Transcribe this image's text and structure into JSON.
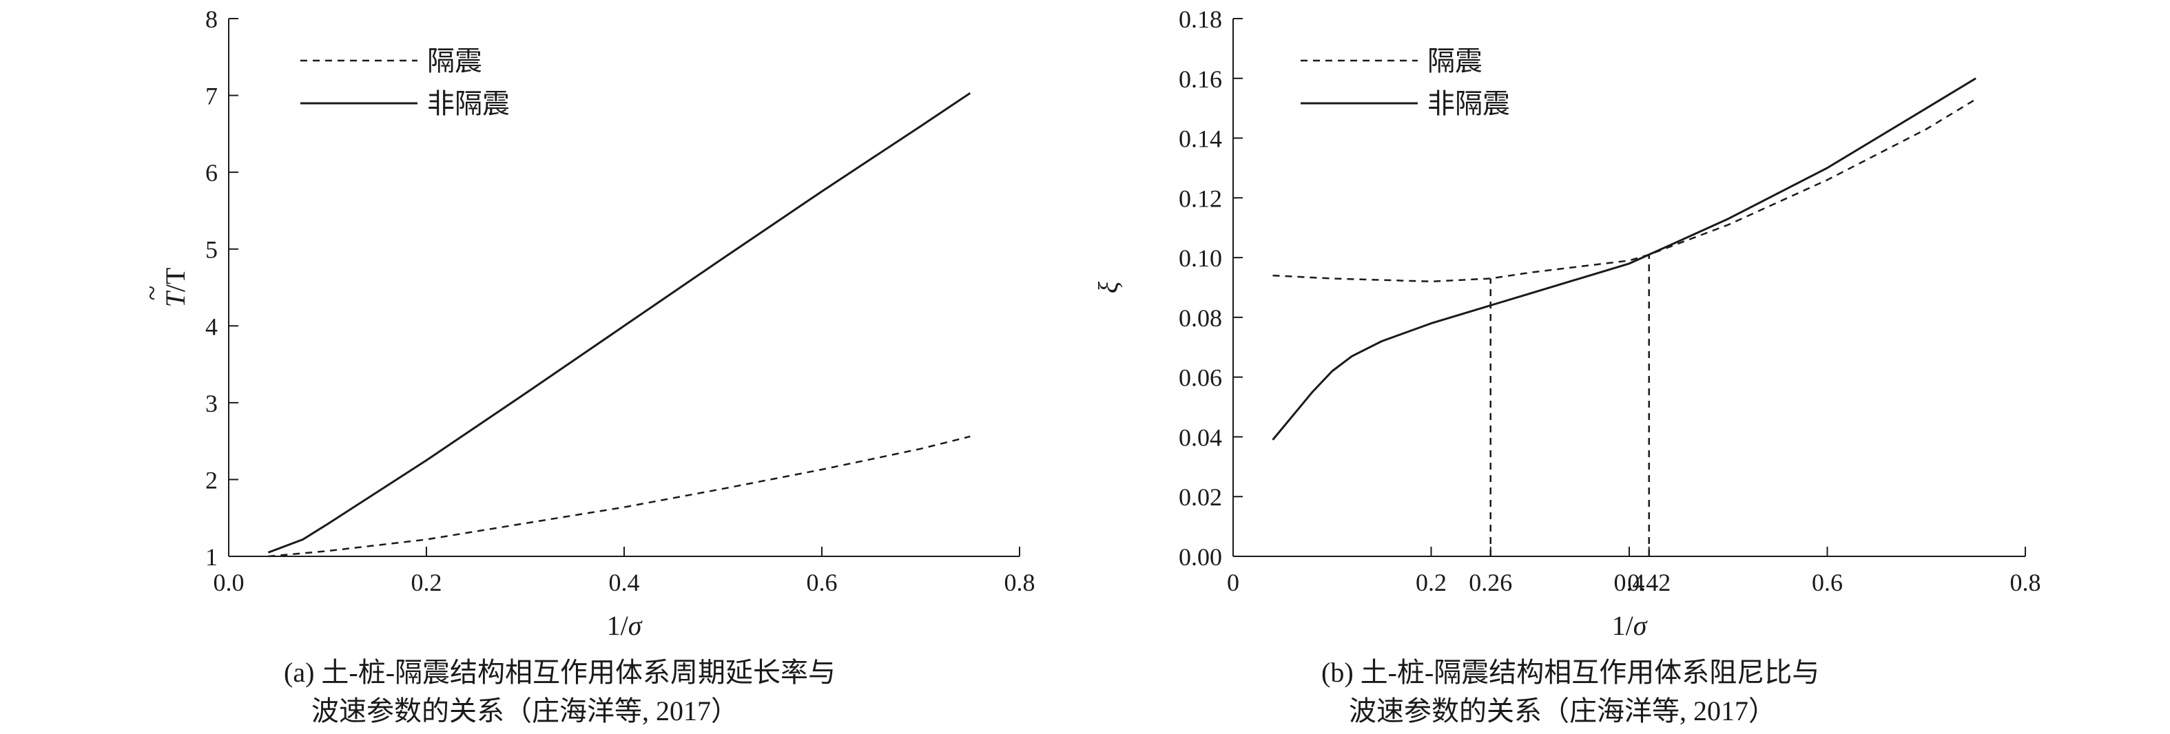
{
  "chart_data": [
    {
      "type": "line",
      "xlabel": "1/σ",
      "ylabel": "T/T",
      "ylabel_mark": "~",
      "xlim": [
        0,
        0.8
      ],
      "ylim": [
        1,
        8
      ],
      "xticks": [
        "0.0",
        "0.2",
        "0.4",
        "0.6",
        "0.8"
      ],
      "yticks": [
        "1",
        "2",
        "3",
        "4",
        "5",
        "6",
        "7",
        "8"
      ],
      "legend_position": "top-left",
      "series": [
        {
          "name": "隔震",
          "style": "dashed",
          "x": [
            0.04,
            0.1,
            0.2,
            0.3,
            0.4,
            0.5,
            0.6,
            0.7,
            0.75
          ],
          "y": [
            1.0,
            1.07,
            1.22,
            1.43,
            1.64,
            1.88,
            2.13,
            2.4,
            2.56
          ]
        },
        {
          "name": "非隔震",
          "style": "solid",
          "x": [
            0.04,
            0.075,
            0.1,
            0.2,
            0.3,
            0.4,
            0.5,
            0.6,
            0.7,
            0.75
          ],
          "y": [
            1.05,
            1.22,
            1.42,
            2.25,
            3.12,
            4.0,
            4.88,
            5.75,
            6.6,
            7.03
          ]
        }
      ],
      "caption_lines": [
        "(a) 土-桩-隔震结构相互作用体系周期延长率与",
        "波速参数的关系（庄海洋等, 2017）"
      ]
    },
    {
      "type": "line",
      "xlabel": "1/σ",
      "ylabel": "ξ",
      "xlim": [
        0,
        0.8
      ],
      "ylim": [
        0,
        0.18
      ],
      "xticks": [
        "0",
        "0.2",
        "0.26",
        "0.4",
        "0.42",
        "0.6",
        "0.8"
      ],
      "xtick_values": [
        0,
        0.2,
        0.26,
        0.4,
        0.42,
        0.6,
        0.8
      ],
      "yticks": [
        "0.00",
        "0.02",
        "0.04",
        "0.06",
        "0.08",
        "0.10",
        "0.12",
        "0.14",
        "0.16",
        "0.18"
      ],
      "legend_position": "top-left",
      "series": [
        {
          "name": "隔震",
          "style": "dashed",
          "x": [
            0.04,
            0.1,
            0.2,
            0.26,
            0.3,
            0.4,
            0.42,
            0.5,
            0.6,
            0.7,
            0.75
          ],
          "y": [
            0.094,
            0.093,
            0.092,
            0.093,
            0.095,
            0.099,
            0.101,
            0.111,
            0.126,
            0.143,
            0.153
          ]
        },
        {
          "name": "非隔震",
          "style": "solid",
          "x": [
            0.04,
            0.06,
            0.08,
            0.1,
            0.12,
            0.15,
            0.2,
            0.26,
            0.3,
            0.4,
            0.42,
            0.5,
            0.6,
            0.7,
            0.75
          ],
          "y": [
            0.039,
            0.047,
            0.055,
            0.062,
            0.067,
            0.072,
            0.078,
            0.084,
            0.088,
            0.098,
            0.101,
            0.113,
            0.13,
            0.15,
            0.16
          ]
        }
      ],
      "reference_lines": [
        {
          "x": 0.26,
          "y": 0.093
        },
        {
          "x": 0.42,
          "y": 0.101
        }
      ],
      "caption_lines": [
        "(b) 土-桩-隔震结构相互作用体系阻尼比与",
        "波速参数的关系（庄海洋等, 2017）"
      ]
    }
  ]
}
